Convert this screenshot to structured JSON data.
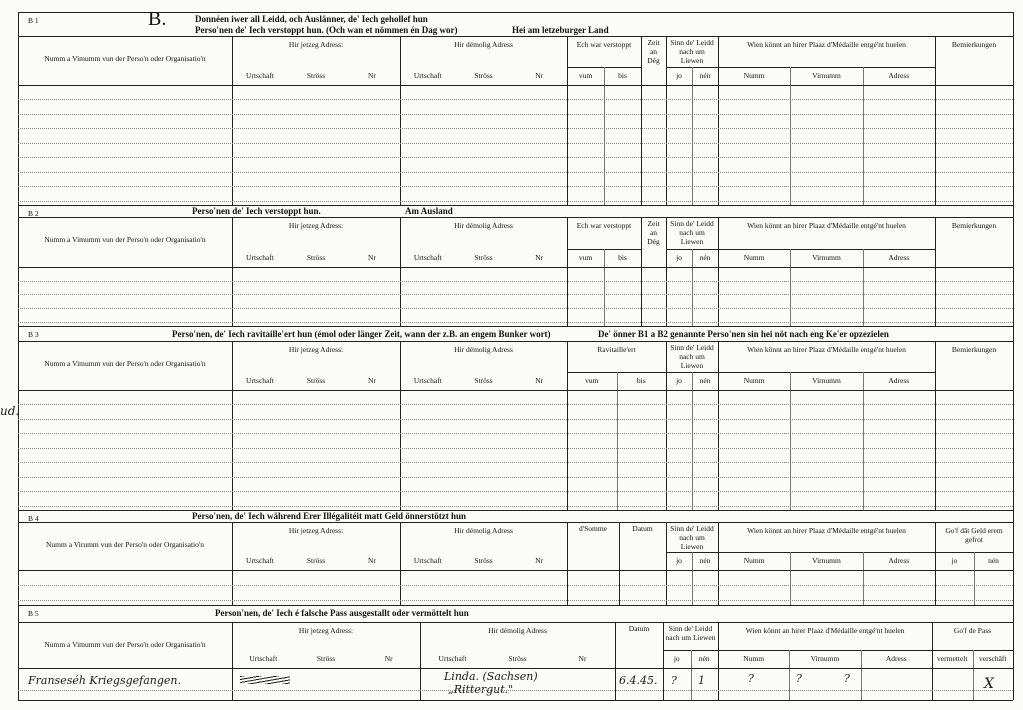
{
  "margin_note": "ud.",
  "sections": [
    {
      "code": "B 1",
      "letter": "B.",
      "heading": [
        "Donnéen iwer all Leidd, och Auslänner, de' Iech gehollef hun",
        "Perso'nen de' Iech verstoppt hun. (Och wan et nömmen én Dag wor)",
        "Hei am letzeburger Land"
      ],
      "columns": [
        {
          "label": "Numm a Vimumm vun der Perso'n oder Organisatio'n"
        },
        {
          "label": "Hir jetzeg Adress:",
          "sub": [
            "Urtschaft",
            "Ströss",
            "Nr"
          ]
        },
        {
          "label": "Hir démolig Adress",
          "sub": [
            "Urtschaft",
            "Ströss",
            "Nr"
          ]
        },
        {
          "label": "Ech war verstoppt",
          "sub": [
            "vum",
            "bis"
          ]
        },
        {
          "label": "Zeit an Dég"
        },
        {
          "label": "Sinn de' Leidd nach um Liewen",
          "sub": [
            "jo",
            "nén"
          ]
        },
        {
          "label": "Wien könnt an hirer Plaaz d'Médaille entgé'nt huelen",
          "sub": [
            "Numm",
            "Virnumm",
            "Adress"
          ]
        },
        {
          "label": "Bemierkungen"
        }
      ]
    },
    {
      "code": "B 2",
      "heading": [
        "Perso'nen de' Iech verstoppt hun.",
        "Am Ausland"
      ],
      "columns": [
        {
          "label": "Numm a Vimumm vun der Perso'n oder Organisatio'n"
        },
        {
          "label": "Hir jetzeg Adress:",
          "sub": [
            "Urtschaft",
            "Ströss",
            "Nr"
          ]
        },
        {
          "label": "Hir démolig Adress",
          "sub": [
            "Urtschaft",
            "Ströss",
            "Nr"
          ]
        },
        {
          "label": "Ech war verstoppt",
          "sub": [
            "vum",
            "bis"
          ]
        },
        {
          "label": "Zeit an Dég"
        },
        {
          "label": "Sinn de' Leidd nach um Liewen",
          "sub": [
            "jo",
            "nén"
          ]
        },
        {
          "label": "Wien könnt an hirer Plaaz d'Médaille entgé'nt huelen",
          "sub": [
            "Numm",
            "Virnumm",
            "Adress"
          ]
        },
        {
          "label": "Bemierkungen"
        }
      ]
    },
    {
      "code": "B 3",
      "heading": [
        "Perso'nen, de' Iech ravitaille'ert hun (émol oder länger Zeit, wann der z.B. an engem Bunker wort)",
        "De' önner B1 a B2 genannte Perso'nen sin hei nöt nach eng Ke'er opzezielen"
      ],
      "columns": [
        {
          "label": "Numm a Vimumm vun der Perso'n oder Organisatio'n"
        },
        {
          "label": "Hir jetzeg Adress:",
          "sub": [
            "Urtschaft",
            "Ströss",
            "Nr"
          ]
        },
        {
          "label": "Hir démolig Adress",
          "sub": [
            "Urtschaft",
            "Ströss",
            "Nr"
          ]
        },
        {
          "label": "Ravitaille'ert",
          "sub": [
            "vum",
            "bis"
          ]
        },
        {
          "label": "Sinn de' Leidd nach um Liewen",
          "sub": [
            "jo",
            "nén"
          ]
        },
        {
          "label": "Wien könnt an hirer Plaaz d'Médaille entgé'nt huelen",
          "sub": [
            "Numm",
            "Virnumm",
            "Adress"
          ]
        },
        {
          "label": "Bemierkungen"
        }
      ]
    },
    {
      "code": "B 4",
      "heading": [
        "Perso'nen, de' Iech während Erer Illégalitéit matt Geld önnerstötzt hun"
      ],
      "columns": [
        {
          "label": "Numm a Virumm vun der Perso'n oder Organisatio'n"
        },
        {
          "label": "Hir jetzeg Adress:",
          "sub": [
            "Urtschaft",
            "Ströss",
            "Nr"
          ]
        },
        {
          "label": "Hir démolig Adress",
          "sub": [
            "Urtschaft",
            "Ströss",
            "Nr"
          ]
        },
        {
          "label": "d'Somme"
        },
        {
          "label": "Datum"
        },
        {
          "label": "Sinn de' Leidd nach um Liewen",
          "sub": [
            "jo",
            "nén"
          ]
        },
        {
          "label": "Wien könnt an hirer Plaaz d'Médaille entgé'nt huelen",
          "sub": [
            "Numm",
            "Virnumm",
            "Adress"
          ]
        },
        {
          "label": "Go'f dât Geld erem gefrot",
          "sub": [
            "jo",
            "nén"
          ]
        }
      ]
    },
    {
      "code": "B 5",
      "heading": [
        "Person'nen, de' Iech é falsche Pass ausgestallt oder vermöttelt hun"
      ],
      "columns": [
        {
          "label": "Numm a Vimumm vun der Perso'n oder Organisatio'n"
        },
        {
          "label": "Hir jetzeg Adress:",
          "sub": [
            "Urtschaft",
            "Ströss",
            "Nr"
          ]
        },
        {
          "label": "Hir démolig Adress",
          "sub": [
            "Urtschaft",
            "Ströss",
            "Nr"
          ]
        },
        {
          "label": "Datum"
        },
        {
          "label": "Sinn de' Leidd nach um Liewen",
          "sub": [
            "jo",
            "nén"
          ]
        },
        {
          "label": "Wien könnt an hirer Plaaz d'Médaille entgé'nt huelen",
          "sub": [
            "Numm",
            "Virnumm",
            "Adress"
          ]
        },
        {
          "label": "Go'f de Pass",
          "sub": [
            "vermettelt",
            "verschâft"
          ]
        }
      ],
      "entry": {
        "name": "Franseséh Kriegsgefangen.",
        "former_address": [
          "Linda. (Sachsen)",
          "„Rittergut.\""
        ],
        "date": "6.4.45.",
        "alive": [
          "?",
          "1"
        ],
        "substitute": [
          "?",
          "?",
          "?"
        ],
        "pass_verschaft": "X"
      }
    }
  ]
}
